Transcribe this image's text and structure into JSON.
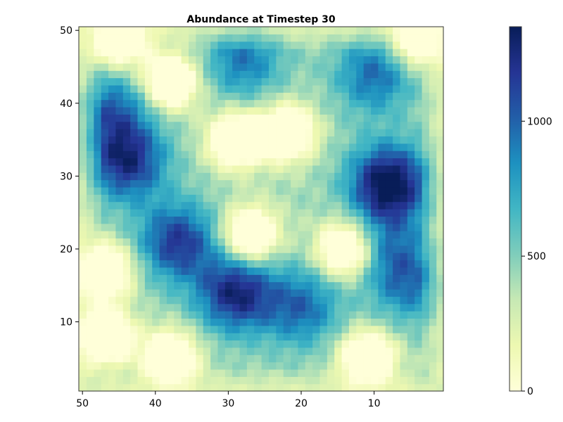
{
  "chart_data": {
    "type": "heatmap",
    "title": "Abundance at Timestep 30",
    "xlabel": "",
    "ylabel": "",
    "xlim": [
      50.5,
      0.5
    ],
    "ylim": [
      0.5,
      50.5
    ],
    "x_reversed": true,
    "xticks": [
      50,
      40,
      30,
      20,
      10
    ],
    "yticks": [
      10,
      20,
      30,
      40,
      50
    ],
    "grid": false,
    "grid_size": [
      50,
      50
    ],
    "colorbar": {
      "ticks": [
        0,
        500,
        1000
      ],
      "range": [
        0,
        1350
      ],
      "colormap": [
        "#ffffd9",
        "#edf8b1",
        "#c7e9b4",
        "#7fcdbb",
        "#41b6c4",
        "#1d91c0",
        "#225ea8",
        "#253494",
        "#081d58"
      ]
    },
    "hotspots": [
      {
        "x": 8,
        "y": 29,
        "value": 1350
      },
      {
        "x": 29,
        "y": 14,
        "value": 1150
      },
      {
        "x": 44,
        "y": 32,
        "value": 1100
      },
      {
        "x": 37,
        "y": 21,
        "value": 1050
      },
      {
        "x": 10,
        "y": 44,
        "value": 850
      },
      {
        "x": 28,
        "y": 46,
        "value": 800
      },
      {
        "x": 46,
        "y": 39,
        "value": 850
      },
      {
        "x": 5,
        "y": 15,
        "value": 750
      },
      {
        "x": 20,
        "y": 12,
        "value": 850
      },
      {
        "x": 8,
        "y": 20,
        "value": 700
      }
    ],
    "lowzones": [
      {
        "x": 29,
        "y": 35,
        "value": 0
      },
      {
        "x": 22,
        "y": 36,
        "value": 0
      },
      {
        "x": 27,
        "y": 22,
        "value": 0
      },
      {
        "x": 14,
        "y": 20,
        "value": 0
      },
      {
        "x": 38,
        "y": 43,
        "value": 0
      },
      {
        "x": 47,
        "y": 17,
        "value": 0
      },
      {
        "x": 38,
        "y": 5,
        "value": 0
      },
      {
        "x": 47,
        "y": 8,
        "value": 0
      },
      {
        "x": 11,
        "y": 5,
        "value": 0
      },
      {
        "x": 4,
        "y": 49,
        "value": 0
      },
      {
        "x": 45,
        "y": 49,
        "value": 0
      }
    ]
  }
}
